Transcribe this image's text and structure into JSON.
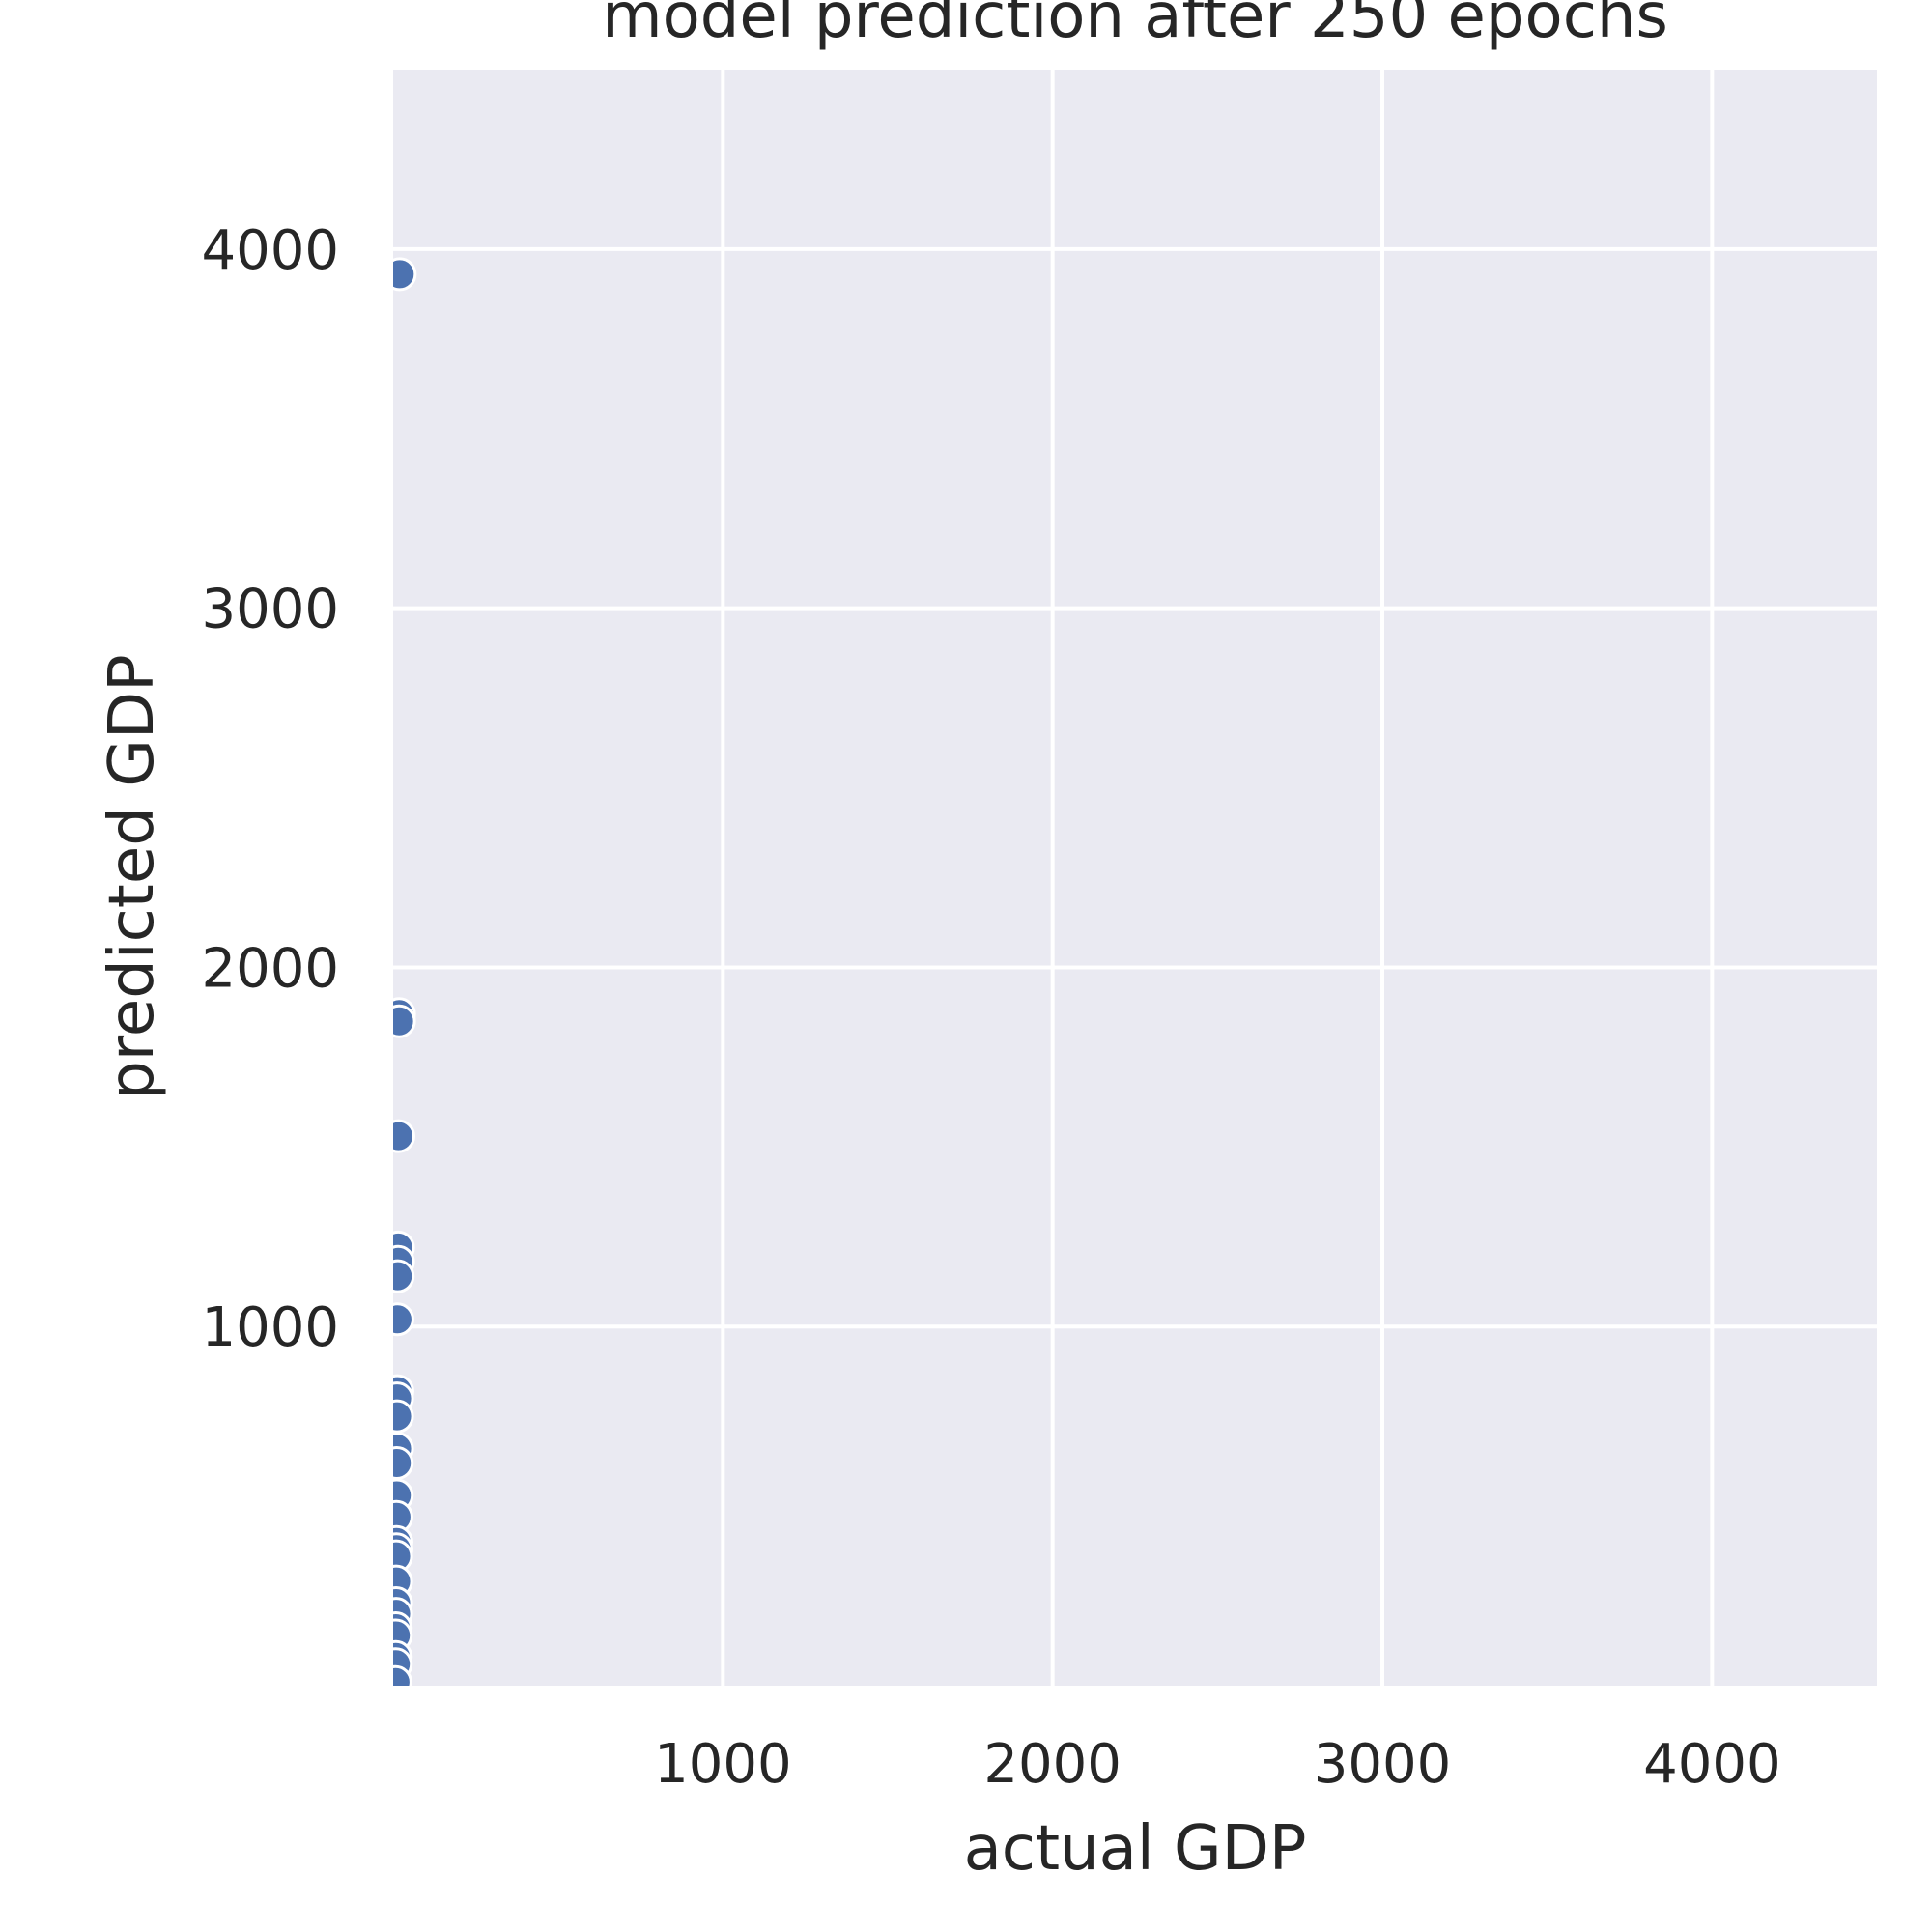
{
  "chart_data": {
    "type": "scatter",
    "title": "model prediction after 250 epochs",
    "xlabel": "actual GDP",
    "ylabel": "predicted GDP",
    "xlim": [
      0,
      4500
    ],
    "ylim": [
      0,
      4500
    ],
    "xticks": [
      1000,
      2000,
      3000,
      4000
    ],
    "yticks": [
      1000,
      2000,
      3000,
      4000
    ],
    "grid": true,
    "point_color": "#4c72b0",
    "background_color": "#eaeaf2",
    "points": [
      {
        "x": 20,
        "y": 3930
      },
      {
        "x": 18,
        "y": 1870
      },
      {
        "x": 18,
        "y": 1850
      },
      {
        "x": 16,
        "y": 1530
      },
      {
        "x": 15,
        "y": 1220
      },
      {
        "x": 15,
        "y": 1180
      },
      {
        "x": 14,
        "y": 1140
      },
      {
        "x": 13,
        "y": 1020
      },
      {
        "x": 13,
        "y": 820
      },
      {
        "x": 12,
        "y": 800
      },
      {
        "x": 12,
        "y": 750
      },
      {
        "x": 12,
        "y": 660
      },
      {
        "x": 11,
        "y": 620
      },
      {
        "x": 11,
        "y": 530
      },
      {
        "x": 10,
        "y": 470
      },
      {
        "x": 10,
        "y": 400
      },
      {
        "x": 10,
        "y": 380
      },
      {
        "x": 9,
        "y": 360
      },
      {
        "x": 9,
        "y": 290
      },
      {
        "x": 9,
        "y": 230
      },
      {
        "x": 9,
        "y": 200
      },
      {
        "x": 8,
        "y": 160
      },
      {
        "x": 8,
        "y": 140
      },
      {
        "x": 8,
        "y": 80
      },
      {
        "x": 8,
        "y": 60
      },
      {
        "x": 7,
        "y": 10
      }
    ]
  }
}
